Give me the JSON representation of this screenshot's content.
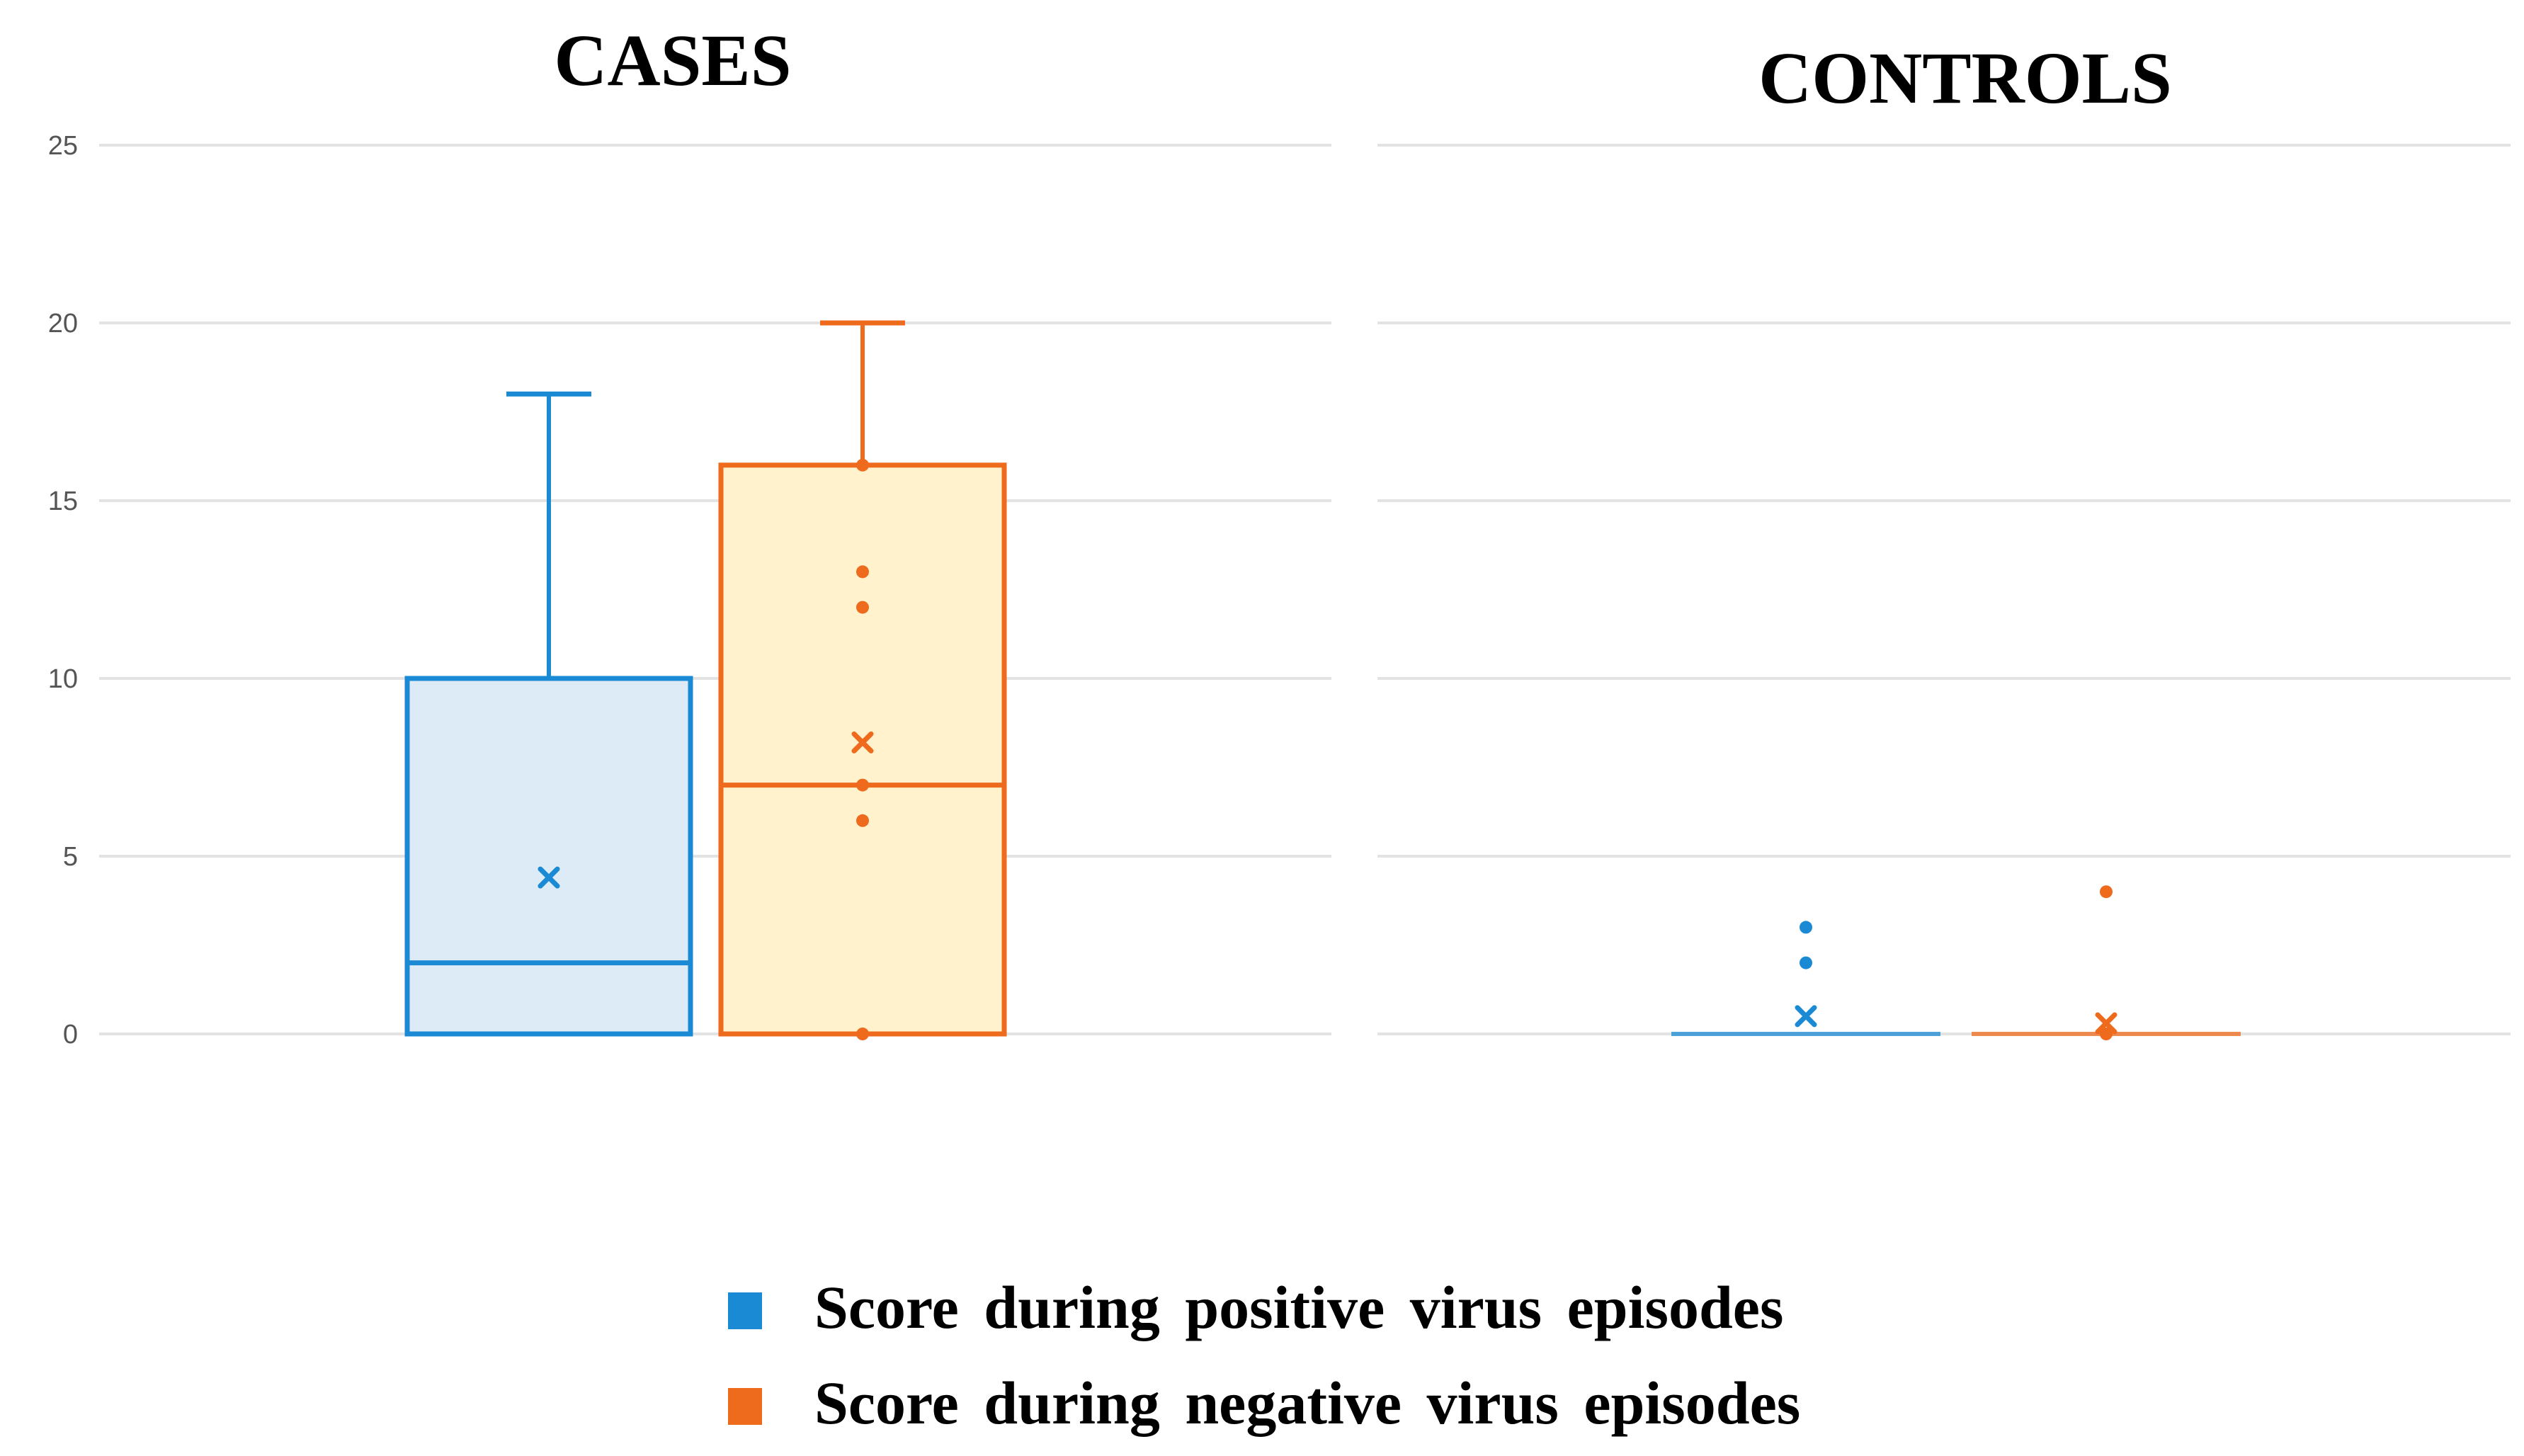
{
  "chart_data": {
    "type": "box",
    "y_axis": {
      "min": 0,
      "max": 25,
      "ticks": [
        0,
        5,
        10,
        15,
        20,
        25
      ],
      "grid": true
    },
    "series": [
      {
        "name": "Score during positive virus episodes",
        "color": "#1a8ad4",
        "fill": "#ddebf7"
      },
      {
        "name": "Score during negative virus episodes",
        "color": "#ee6a1c",
        "fill": "#fff2cc"
      }
    ],
    "panels": [
      {
        "title": "CASES",
        "boxes": [
          {
            "series": 0,
            "min": 0,
            "q1": 0,
            "median": 2,
            "q3": 10,
            "max": 18,
            "mean": 4.4,
            "points": []
          },
          {
            "series": 1,
            "min": 0,
            "q1": 0,
            "median": 7,
            "q3": 16,
            "max": 20,
            "mean": 8.2,
            "points": [
              0,
              6,
              7,
              12,
              13,
              16
            ]
          }
        ]
      },
      {
        "title": "CONTROLS",
        "boxes": [
          {
            "series": 0,
            "min": 0,
            "q1": 0,
            "median": 0,
            "q3": 0,
            "max": 0,
            "mean": 0.5,
            "points": [
              2,
              3
            ]
          },
          {
            "series": 1,
            "min": 0,
            "q1": 0,
            "median": 0,
            "q3": 0,
            "max": 0,
            "mean": 0.3,
            "points": [
              0,
              4
            ]
          }
        ]
      }
    ],
    "legend": {
      "position": "bottom-center",
      "items": [
        "Score during positive virus episodes",
        "Score during negative virus episodes"
      ]
    }
  }
}
